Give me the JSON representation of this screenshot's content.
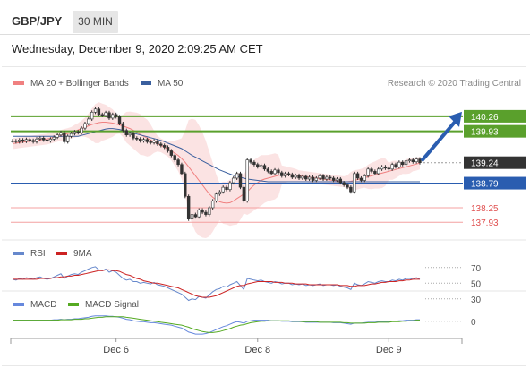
{
  "header": {
    "pair": "GBP/JPY",
    "timeframe": "30 MIN",
    "datetime": "Wednesday, December 9, 2020 2:09:25 AM CET"
  },
  "legend": {
    "ma20_label": "MA 20 + Bollinger Bands",
    "ma50_label": "MA 50",
    "credit": "Research © 2020 Trading Central",
    "rsi_label": "RSI",
    "rsi_ma_label": "9MA",
    "macd_label": "MACD",
    "macd_signal_label": "MACD Signal"
  },
  "colors": {
    "ma20": "#f08080",
    "ma50": "#3a5f9e",
    "resistance": "#5aa02c",
    "current": "#333333",
    "pivot": "#2a5db0",
    "support": "#e05050",
    "rsi": "#6688cc",
    "rsi_ma": "#cc2222",
    "macd": "#6688dd",
    "macd_signal": "#55aa22",
    "candle_up": "#ffffff",
    "candle_down": "#333333"
  },
  "chart_data": [
    {
      "type": "candlestick",
      "title": "GBP/JPY 30 MIN",
      "ylim": [
        137.6,
        140.75
      ],
      "x_ticks": [
        "Dec 6",
        "Dec 8",
        "Dec 9"
      ],
      "x_tick_index": [
        30,
        71,
        109
      ],
      "levels": [
        {
          "value": 140.26,
          "label": "140.26",
          "kind": "resistance"
        },
        {
          "value": 139.93,
          "label": "139.93",
          "kind": "resistance"
        },
        {
          "value": 139.24,
          "label": "139.24",
          "kind": "current"
        },
        {
          "value": 138.79,
          "label": "138.79",
          "kind": "pivot"
        },
        {
          "value": 138.25,
          "label": "138.25",
          "kind": "support"
        },
        {
          "value": 137.93,
          "label": "137.93",
          "kind": "support"
        }
      ],
      "forecast_target": 140.26,
      "close": [
        139.72,
        139.7,
        139.74,
        139.71,
        139.75,
        139.73,
        139.7,
        139.76,
        139.78,
        139.74,
        139.72,
        139.76,
        139.8,
        139.85,
        139.9,
        139.7,
        139.82,
        139.88,
        139.92,
        139.9,
        140.0,
        140.1,
        140.2,
        140.35,
        140.42,
        140.3,
        140.28,
        140.34,
        140.22,
        140.3,
        140.25,
        140.1,
        139.95,
        139.85,
        139.88,
        139.78,
        139.76,
        139.72,
        139.75,
        139.7,
        139.68,
        139.72,
        139.65,
        139.62,
        139.58,
        139.5,
        139.4,
        139.3,
        139.2,
        139.0,
        138.5,
        138.0,
        138.1,
        138.05,
        138.2,
        138.15,
        138.1,
        138.25,
        138.4,
        138.55,
        138.6,
        138.7,
        138.65,
        138.8,
        138.9,
        139.0,
        138.7,
        138.4,
        139.3,
        139.25,
        139.2,
        139.15,
        139.18,
        139.1,
        139.05,
        139.0,
        139.08,
        139.02,
        138.95,
        139.0,
        138.98,
        138.92,
        138.96,
        138.9,
        138.94,
        138.88,
        138.92,
        138.85,
        138.9,
        138.95,
        138.88,
        138.92,
        138.9,
        138.85,
        138.88,
        138.8,
        138.75,
        138.7,
        138.6,
        139.0,
        138.9,
        138.85,
        138.95,
        139.1,
        139.05,
        139.0,
        139.1,
        139.15,
        139.12,
        139.1,
        139.2,
        139.15,
        139.25,
        139.2,
        139.28,
        139.3,
        139.26,
        139.32,
        139.24
      ],
      "ma20": [
        139.66,
        139.67,
        139.68,
        139.69,
        139.7,
        139.71,
        139.72,
        139.73,
        139.74,
        139.75,
        139.76,
        139.78,
        139.8,
        139.82,
        139.84,
        139.86,
        139.88,
        139.9,
        139.93,
        139.96,
        139.99,
        140.02,
        140.05,
        140.08,
        140.1,
        140.12,
        140.13,
        140.13,
        140.12,
        140.11,
        140.09,
        140.07,
        140.05,
        140.02,
        139.99,
        139.95,
        139.91,
        139.86,
        139.82,
        139.78,
        139.74,
        139.7,
        139.66,
        139.62,
        139.58,
        139.54,
        139.5,
        139.45,
        139.4,
        139.33,
        139.25,
        139.15,
        139.05,
        138.95,
        138.85,
        138.75,
        138.65,
        138.55,
        138.48,
        138.42,
        138.38,
        138.36,
        138.35,
        138.36,
        138.4,
        138.45,
        138.5,
        138.55,
        138.6,
        138.68,
        138.75,
        138.8,
        138.85,
        138.88,
        138.9,
        138.92,
        138.94,
        138.96,
        138.97,
        138.98,
        138.98,
        138.97,
        138.96,
        138.95,
        138.94,
        138.93,
        138.92,
        138.91,
        138.9,
        138.89,
        138.88,
        138.87,
        138.86,
        138.85,
        138.84,
        138.83,
        138.82,
        138.82,
        138.83,
        138.85,
        138.87,
        138.89,
        138.91,
        138.93,
        138.95,
        138.97,
        138.99,
        139.01,
        139.03,
        139.05,
        139.07,
        139.09,
        139.11,
        139.13,
        139.15,
        139.17,
        139.19,
        139.21,
        139.23
      ],
      "ma50": [
        139.82,
        139.82,
        139.82,
        139.82,
        139.82,
        139.82,
        139.82,
        139.82,
        139.82,
        139.82,
        139.82,
        139.82,
        139.82,
        139.82,
        139.82,
        139.82,
        139.82,
        139.82,
        139.82,
        139.82,
        139.84,
        139.86,
        139.88,
        139.9,
        139.92,
        139.94,
        139.96,
        139.98,
        139.99,
        139.99,
        139.98,
        139.97,
        139.95,
        139.93,
        139.91,
        139.89,
        139.87,
        139.85,
        139.83,
        139.81,
        139.79,
        139.77,
        139.75,
        139.73,
        139.7,
        139.67,
        139.64,
        139.61,
        139.58,
        139.55,
        139.5,
        139.45,
        139.4,
        139.36,
        139.32,
        139.28,
        139.24,
        139.2,
        139.16,
        139.12,
        139.08,
        139.05,
        139.02,
        138.99,
        138.96,
        138.94,
        138.92,
        138.9,
        138.88,
        138.87,
        138.86,
        138.85,
        138.84,
        138.83,
        138.82,
        138.82,
        138.82,
        138.82,
        138.82,
        138.82,
        138.82,
        138.82,
        138.82,
        138.82,
        138.82,
        138.82,
        138.82,
        138.82,
        138.82,
        138.82,
        138.82,
        138.82,
        138.82,
        138.82,
        138.82,
        138.82,
        138.82,
        138.82,
        138.82,
        138.82,
        138.82,
        138.82,
        138.82,
        138.82,
        138.82,
        138.82,
        138.82,
        138.82,
        138.82,
        138.82,
        138.82,
        138.82,
        138.82,
        138.82,
        138.82,
        138.82,
        138.82,
        138.82,
        138.82
      ]
    },
    {
      "type": "line",
      "title": "RSI",
      "ylim": [
        40,
        80
      ],
      "y_ticks": [
        70,
        50,
        30
      ],
      "rsi": [
        55,
        54,
        56,
        55,
        57,
        56,
        55,
        57,
        58,
        56,
        55,
        56,
        58,
        60,
        62,
        56,
        59,
        61,
        62,
        61,
        64,
        66,
        68,
        70,
        71,
        67,
        66,
        68,
        64,
        66,
        64,
        60,
        56,
        54,
        55,
        52,
        52,
        50,
        51,
        50,
        49,
        51,
        48,
        47,
        46,
        44,
        42,
        40,
        38,
        36,
        32,
        28,
        30,
        29,
        33,
        32,
        31,
        35,
        39,
        42,
        43,
        46,
        45,
        48,
        50,
        52,
        47,
        42,
        56,
        55,
        54,
        53,
        54,
        52,
        51,
        50,
        52,
        51,
        49,
        50,
        50,
        48,
        49,
        48,
        49,
        47,
        48,
        47,
        48,
        49,
        47,
        48,
        48,
        47,
        48,
        46,
        45,
        44,
        42,
        50,
        48,
        47,
        49,
        52,
        51,
        50,
        52,
        53,
        52,
        52,
        54,
        53,
        55,
        54,
        56,
        56,
        55,
        57,
        55
      ],
      "rsi_ma": [
        55,
        55,
        55,
        55,
        55,
        55,
        55,
        55,
        56,
        56,
        56,
        56,
        57,
        57,
        58,
        58,
        59,
        59,
        60,
        60,
        61,
        62,
        63,
        64,
        65,
        66,
        66,
        67,
        67,
        66,
        66,
        65,
        63,
        61,
        60,
        58,
        56,
        55,
        53,
        52,
        51,
        50,
        50,
        49,
        48,
        47,
        46,
        45,
        44,
        42,
        40,
        38,
        36,
        34,
        33,
        32,
        32,
        32,
        33,
        34,
        36,
        38,
        40,
        42,
        44,
        46,
        47,
        47,
        49,
        50,
        51,
        52,
        52,
        52,
        52,
        52,
        51,
        51,
        51,
        50,
        50,
        50,
        49,
        49,
        49,
        49,
        48,
        48,
        48,
        48,
        48,
        48,
        48,
        48,
        48,
        47,
        47,
        47,
        46,
        46,
        47,
        47,
        47,
        48,
        49,
        49,
        50,
        51,
        51,
        52,
        52,
        52,
        53,
        53,
        54,
        54,
        55,
        55,
        55
      ]
    },
    {
      "type": "line",
      "title": "MACD",
      "ylim": [
        -0.35,
        0.25
      ],
      "y_ticks": [
        0
      ],
      "macd": [
        0.02,
        0.02,
        0.02,
        0.02,
        0.02,
        0.02,
        0.02,
        0.02,
        0.02,
        0.02,
        0.02,
        0.02,
        0.03,
        0.03,
        0.04,
        0.03,
        0.04,
        0.04,
        0.05,
        0.05,
        0.06,
        0.07,
        0.08,
        0.1,
        0.11,
        0.11,
        0.11,
        0.11,
        0.1,
        0.1,
        0.09,
        0.08,
        0.06,
        0.04,
        0.03,
        0.01,
        0.0,
        -0.01,
        -0.01,
        -0.02,
        -0.03,
        -0.03,
        -0.04,
        -0.05,
        -0.06,
        -0.07,
        -0.08,
        -0.1,
        -0.12,
        -0.14,
        -0.18,
        -0.22,
        -0.24,
        -0.26,
        -0.26,
        -0.26,
        -0.25,
        -0.23,
        -0.2,
        -0.17,
        -0.14,
        -0.11,
        -0.09,
        -0.06,
        -0.03,
        -0.01,
        -0.02,
        -0.04,
        0.0,
        0.01,
        0.02,
        0.02,
        0.02,
        0.02,
        0.02,
        0.01,
        0.01,
        0.01,
        0.0,
        0.0,
        0.0,
        -0.01,
        -0.01,
        -0.01,
        -0.01,
        -0.02,
        -0.02,
        -0.02,
        -0.02,
        -0.02,
        -0.02,
        -0.02,
        -0.02,
        -0.03,
        -0.03,
        -0.03,
        -0.04,
        -0.05,
        -0.06,
        -0.04,
        -0.04,
        -0.04,
        -0.03,
        -0.02,
        -0.02,
        -0.02,
        -0.01,
        -0.01,
        -0.01,
        -0.01,
        0.0,
        0.0,
        0.01,
        0.01,
        0.02,
        0.02,
        0.02,
        0.03,
        0.03
      ],
      "macd_signal": [
        0.02,
        0.02,
        0.02,
        0.02,
        0.02,
        0.02,
        0.02,
        0.02,
        0.02,
        0.02,
        0.02,
        0.02,
        0.02,
        0.02,
        0.03,
        0.03,
        0.03,
        0.03,
        0.04,
        0.04,
        0.04,
        0.05,
        0.05,
        0.06,
        0.07,
        0.08,
        0.08,
        0.09,
        0.09,
        0.09,
        0.09,
        0.09,
        0.09,
        0.08,
        0.07,
        0.06,
        0.05,
        0.04,
        0.03,
        0.02,
        0.01,
        0.0,
        -0.01,
        -0.02,
        -0.03,
        -0.04,
        -0.05,
        -0.06,
        -0.07,
        -0.08,
        -0.1,
        -0.12,
        -0.15,
        -0.17,
        -0.19,
        -0.21,
        -0.22,
        -0.23,
        -0.23,
        -0.22,
        -0.21,
        -0.19,
        -0.17,
        -0.15,
        -0.12,
        -0.1,
        -0.08,
        -0.07,
        -0.05,
        -0.03,
        -0.02,
        -0.01,
        0.0,
        0.0,
        0.01,
        0.01,
        0.01,
        0.01,
        0.01,
        0.01,
        0.01,
        0.0,
        0.0,
        0.0,
        -0.01,
        -0.01,
        -0.01,
        -0.01,
        -0.01,
        -0.02,
        -0.02,
        -0.02,
        -0.02,
        -0.02,
        -0.02,
        -0.02,
        -0.03,
        -0.03,
        -0.04,
        -0.04,
        -0.04,
        -0.04,
        -0.04,
        -0.03,
        -0.03,
        -0.03,
        -0.02,
        -0.02,
        -0.02,
        -0.02,
        -0.01,
        -0.01,
        -0.01,
        0.0,
        0.0,
        0.01,
        0.01,
        0.02,
        0.02
      ]
    }
  ]
}
